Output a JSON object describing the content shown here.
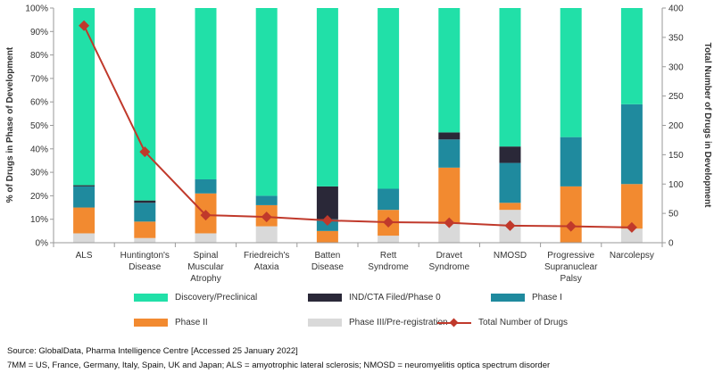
{
  "chart_data": {
    "type": "bar",
    "stacked": true,
    "categories": [
      "ALS",
      "Huntington's Disease",
      "Spinal Muscular Atrophy",
      "Friedreich's Ataxia",
      "Batten Disease",
      "Rett Syndrome",
      "Dravet Syndrome",
      "NMOSD",
      "Progressive Supranuclear Palsy",
      "Narcolepsy"
    ],
    "category_lines": [
      [
        "ALS"
      ],
      [
        "Huntington's",
        "Disease"
      ],
      [
        "Spinal",
        "Muscular",
        "Atrophy"
      ],
      [
        "Friedreich's",
        "Ataxia"
      ],
      [
        "Batten",
        "Disease"
      ],
      [
        "Rett",
        "Syndrome"
      ],
      [
        "Dravet",
        "Syndrome"
      ],
      [
        "NMOSD"
      ],
      [
        "Progressive",
        "Supranuclear",
        "Palsy"
      ],
      [
        "Narcolepsy"
      ]
    ],
    "series": [
      {
        "name": "Phase III/Pre-registration",
        "color": "#d9d9d9",
        "values": [
          4,
          2,
          4,
          7,
          0,
          3,
          8,
          14,
          0,
          6
        ]
      },
      {
        "name": "Phase II",
        "color": "#f28a30",
        "values": [
          11,
          7,
          17,
          9,
          5,
          11,
          24,
          3,
          24,
          19
        ]
      },
      {
        "name": "Phase I",
        "color": "#1f8a9e",
        "values": [
          9,
          8,
          6,
          4,
          5,
          9,
          12,
          17,
          21,
          34
        ]
      },
      {
        "name": "IND/CTA Filed/Phase 0",
        "color": "#2a2838",
        "values": [
          0.5,
          1,
          0,
          0,
          14,
          0,
          3,
          7,
          0,
          0
        ]
      },
      {
        "name": "Discovery/Preclinical",
        "color": "#21e0a8",
        "values": [
          75.5,
          82,
          73,
          80,
          76,
          77,
          53,
          59,
          55,
          41
        ]
      }
    ],
    "legend_order": [
      "Discovery/Preclinical",
      "IND/CTA Filed/Phase 0",
      "Phase I",
      "Phase II",
      "Phase III/Pre-registration",
      "Total Number of Drugs"
    ],
    "line_series": {
      "name": "Total Number of Drugs",
      "color": "#c0392b",
      "values": [
        370,
        155,
        47,
        44,
        38,
        35,
        34,
        29,
        28,
        26
      ]
    },
    "ylabel": "% of Drugs in Phase of Development",
    "y2label": "Total Number of Drugs in Development",
    "ylim": [
      0,
      100
    ],
    "y2lim": [
      0,
      400
    ],
    "yticks": [
      "0%",
      "10%",
      "20%",
      "30%",
      "40%",
      "50%",
      "60%",
      "70%",
      "80%",
      "90%",
      "100%"
    ],
    "y2ticks": [
      "0",
      "50",
      "100",
      "150",
      "200",
      "250",
      "300",
      "350",
      "400"
    ],
    "legend_position": "bottom",
    "grid": false
  },
  "footnotes": {
    "source": "Source: GlobalData, Pharma Intelligence Centre [Accessed 25 January 2022]",
    "note": "7MM = US, France, Germany, Italy, Spain, UK and Japan; ALS = amyotrophic lateral sclerosis; NMOSD = neuromyelitis optica spectrum disorder"
  }
}
